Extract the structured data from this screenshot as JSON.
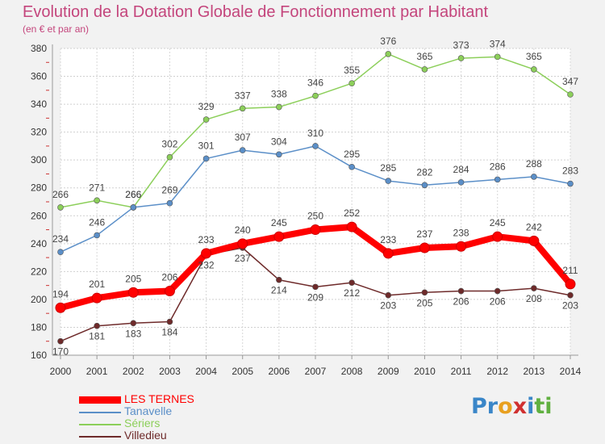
{
  "header": {
    "title": "Evolution de la Dotation Globale de Fonctionnement par Habitant",
    "subtitle": "(en € et par an)"
  },
  "brand": {
    "letters": [
      {
        "ch": "P",
        "color": "#3a86c8"
      },
      {
        "ch": "r",
        "color": "#3a86c8"
      },
      {
        "ch": "o",
        "color": "#e8a020"
      },
      {
        "ch": "x",
        "color": "#d03030"
      },
      {
        "ch": "i",
        "color": "#3a86c8"
      },
      {
        "ch": "t",
        "color": "#60b040"
      },
      {
        "ch": "i",
        "color": "#60b040"
      }
    ]
  },
  "chart_data": {
    "type": "line",
    "x": [
      "2000",
      "2001",
      "2002",
      "2003",
      "2004",
      "2005",
      "2006",
      "2007",
      "2008",
      "2009",
      "2010",
      "2011",
      "2012",
      "2013",
      "2014"
    ],
    "ylim": [
      160,
      380
    ],
    "yticks": [
      160,
      180,
      200,
      220,
      240,
      260,
      280,
      300,
      320,
      340,
      360,
      380
    ],
    "grid": true,
    "legend_position": "bottom-left",
    "series": [
      {
        "name": "Séries",
        "color": "#8ccf5a",
        "values": [
          266,
          271,
          266,
          302,
          329,
          337,
          338,
          346,
          355,
          376,
          365,
          373,
          374,
          365,
          347
        ]
      },
      {
        "name": "Tanavelle",
        "color": "#5b8fc8",
        "values": [
          234,
          246,
          266,
          269,
          301,
          307,
          304,
          310,
          295,
          285,
          282,
          284,
          286,
          288,
          283
        ]
      },
      {
        "name": "Villedieu",
        "color": "#6e2a2a",
        "values": [
          170,
          181,
          183,
          184,
          232,
          237,
          214,
          209,
          212,
          203,
          205,
          206,
          206,
          208,
          203
        ]
      },
      {
        "name": "LES TERNES",
        "color": "#ff0000",
        "values": [
          194,
          201,
          205,
          206,
          233,
          240,
          245,
          250,
          252,
          233,
          237,
          238,
          245,
          242,
          211
        ]
      }
    ],
    "legend_order": [
      "LES TERNES",
      "Tanavelle",
      "Séries",
      "Villedieu"
    ],
    "series_label_override": {
      "Séries": "Sériers"
    }
  }
}
